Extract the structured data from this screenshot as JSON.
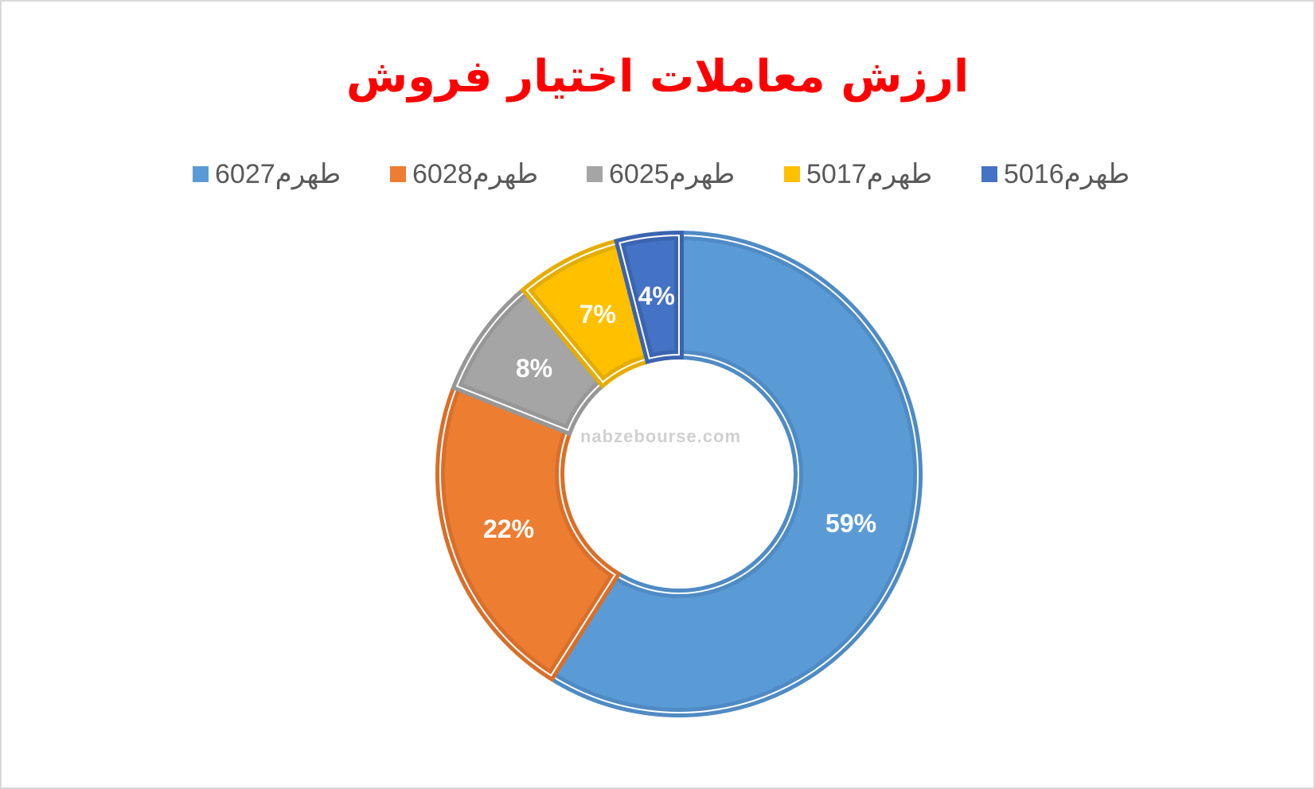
{
  "chart_data": {
    "type": "doughnut",
    "title": "ارزش معاملات اختیار فروش",
    "categories": [
      "طهرم6027",
      "طهرم6028",
      "طهرم6025",
      "طهرم5017",
      "طهرم5016"
    ],
    "values": [
      59,
      22,
      8,
      7,
      4
    ],
    "value_labels": [
      "59%",
      "22%",
      "8%",
      "7%",
      "4%"
    ],
    "colors": [
      "#5b9bd5",
      "#ed7d31",
      "#a5a5a5",
      "#ffc000",
      "#4472c4"
    ],
    "border_colors": [
      "#4f8bc4",
      "#d96f2a",
      "#979797",
      "#e6ad00",
      "#3b64b0"
    ],
    "legend": "top",
    "watermark": "nabzebourse.com"
  }
}
